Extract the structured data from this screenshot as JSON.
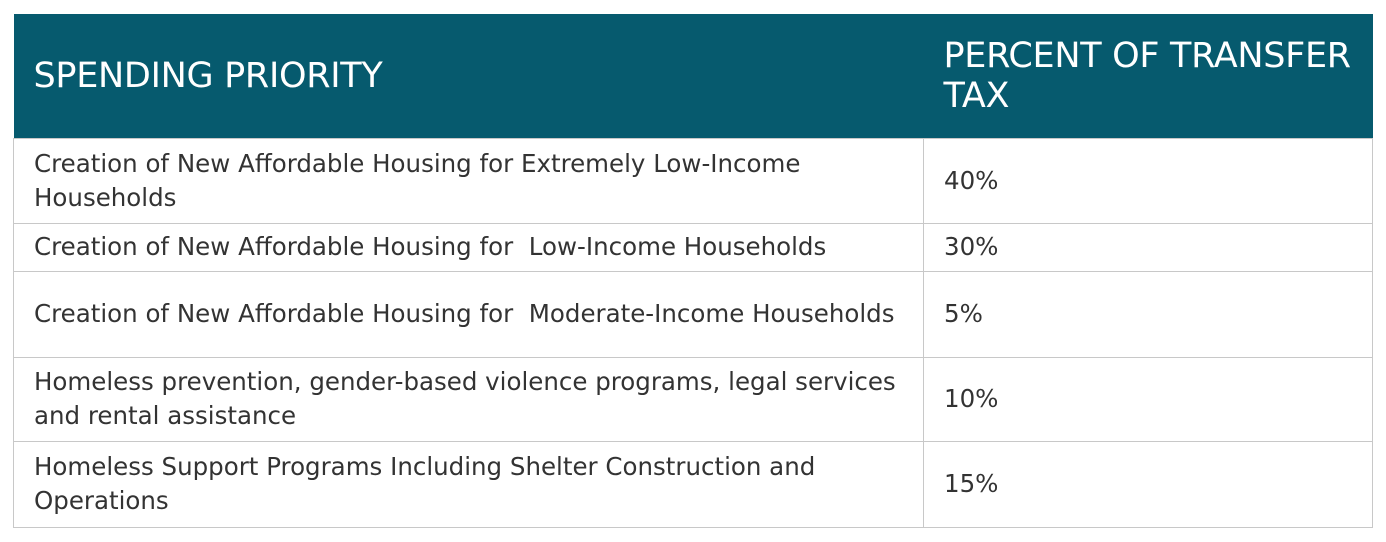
{
  "table": {
    "headers": [
      "SPENDING PRIORITY",
      "PERCENT OF TRANSFER TAX"
    ],
    "rows": [
      {
        "priority": "Creation of New Affordable Housing for Extremely Low-Income Households",
        "percent": "40%"
      },
      {
        "priority": "Creation of New Affordable Housing for  Low-Income Households",
        "percent": "30%"
      },
      {
        "priority": "Creation of New Affordable Housing for  Moderate-Income Households",
        "percent": "5%"
      },
      {
        "priority": "Homeless prevention, gender-based violence programs, legal services and rental assistance",
        "percent": "10%"
      },
      {
        "priority": "Homeless Support Programs Including Shelter Construction and Operations",
        "percent": "15%"
      }
    ]
  },
  "colors": {
    "header_bg": "#065a6e",
    "header_text": "#ffffff",
    "border": "#c8c8c8",
    "body_text": "#333333"
  }
}
